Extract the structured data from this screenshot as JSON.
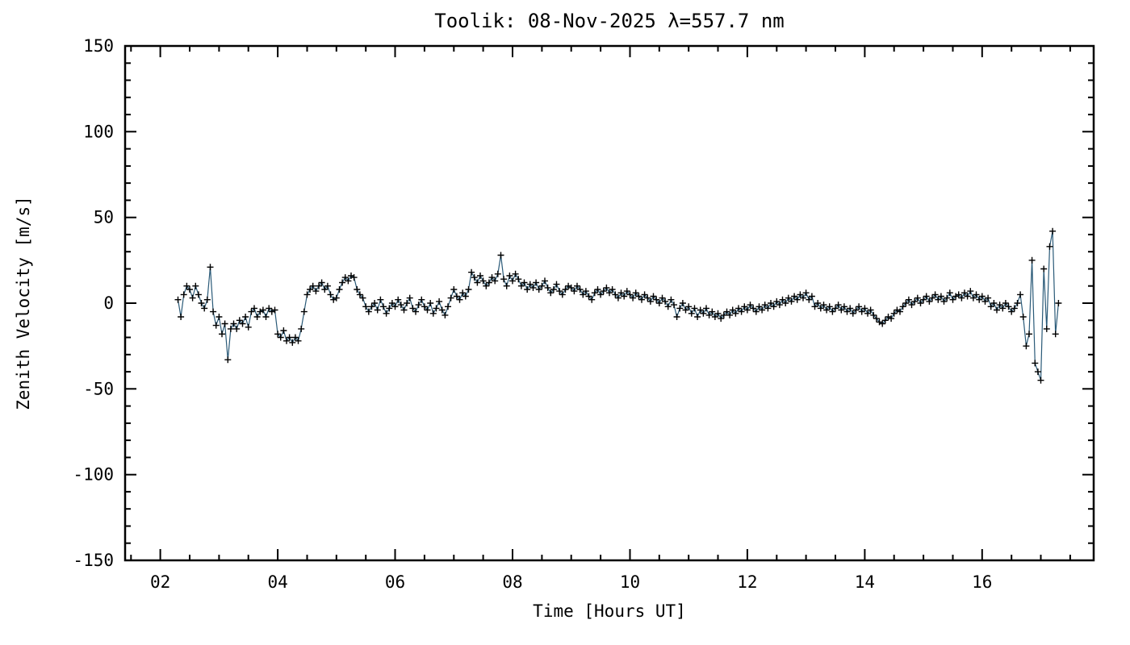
{
  "page": {
    "background": "#ffffff"
  },
  "chart_data": {
    "type": "line",
    "title": "Toolik: 08-Nov-2025 λ=557.7 nm",
    "xlabel": "Time [Hours UT]",
    "ylabel": "Zenith Velocity [m/s]",
    "xlim": [
      1.4,
      17.9
    ],
    "ylim": [
      -150,
      150
    ],
    "x_major_ticks": [
      2,
      4,
      6,
      8,
      10,
      12,
      14,
      16
    ],
    "x_tick_labels": [
      "02",
      "04",
      "06",
      "08",
      "10",
      "12",
      "14",
      "16"
    ],
    "x_minor_interval": 0.5,
    "y_major_ticks": [
      -150,
      -100,
      -50,
      0,
      50,
      100,
      150
    ],
    "y_tick_labels": [
      "-150",
      "-100",
      "-50",
      "0",
      "50",
      "100",
      "150"
    ],
    "y_minor_interval": 10,
    "grid": false,
    "legend": "none",
    "line_color": "#2a5a78",
    "marker": "plus",
    "marker_color": "#000000",
    "axis_color": "#000000",
    "points": [
      [
        2.3,
        2
      ],
      [
        2.35,
        -8
      ],
      [
        2.4,
        5
      ],
      [
        2.45,
        10
      ],
      [
        2.5,
        8
      ],
      [
        2.55,
        3
      ],
      [
        2.6,
        10
      ],
      [
        2.65,
        5
      ],
      [
        2.7,
        0
      ],
      [
        2.75,
        -3
      ],
      [
        2.8,
        2
      ],
      [
        2.85,
        21
      ],
      [
        2.9,
        -5
      ],
      [
        2.95,
        -13
      ],
      [
        3.0,
        -8
      ],
      [
        3.05,
        -18
      ],
      [
        3.1,
        -12
      ],
      [
        3.15,
        -33
      ],
      [
        3.2,
        -15
      ],
      [
        3.25,
        -12
      ],
      [
        3.3,
        -15
      ],
      [
        3.35,
        -10
      ],
      [
        3.4,
        -12
      ],
      [
        3.45,
        -8
      ],
      [
        3.5,
        -14
      ],
      [
        3.55,
        -5
      ],
      [
        3.6,
        -3
      ],
      [
        3.65,
        -8
      ],
      [
        3.7,
        -5
      ],
      [
        3.75,
        -4
      ],
      [
        3.8,
        -8
      ],
      [
        3.85,
        -3
      ],
      [
        3.9,
        -5
      ],
      [
        3.95,
        -4
      ],
      [
        4.0,
        -18
      ],
      [
        4.05,
        -20
      ],
      [
        4.1,
        -16
      ],
      [
        4.15,
        -22
      ],
      [
        4.2,
        -20
      ],
      [
        4.25,
        -23
      ],
      [
        4.3,
        -20
      ],
      [
        4.35,
        -22
      ],
      [
        4.4,
        -15
      ],
      [
        4.45,
        -5
      ],
      [
        4.5,
        5
      ],
      [
        4.55,
        8
      ],
      [
        4.6,
        10
      ],
      [
        4.65,
        7
      ],
      [
        4.7,
        10
      ],
      [
        4.75,
        12
      ],
      [
        4.8,
        8
      ],
      [
        4.85,
        10
      ],
      [
        4.9,
        5
      ],
      [
        4.95,
        2
      ],
      [
        5.0,
        3
      ],
      [
        5.05,
        8
      ],
      [
        5.1,
        12
      ],
      [
        5.15,
        15
      ],
      [
        5.2,
        13
      ],
      [
        5.25,
        16
      ],
      [
        5.3,
        15
      ],
      [
        5.35,
        8
      ],
      [
        5.4,
        5
      ],
      [
        5.45,
        3
      ],
      [
        5.5,
        -2
      ],
      [
        5.55,
        -5
      ],
      [
        5.6,
        -2
      ],
      [
        5.65,
        0
      ],
      [
        5.7,
        -4
      ],
      [
        5.75,
        2
      ],
      [
        5.8,
        -2
      ],
      [
        5.85,
        -6
      ],
      [
        5.9,
        -3
      ],
      [
        5.95,
        0
      ],
      [
        6.0,
        -2
      ],
      [
        6.05,
        2
      ],
      [
        6.1,
        -1
      ],
      [
        6.15,
        -4
      ],
      [
        6.2,
        0
      ],
      [
        6.25,
        3
      ],
      [
        6.3,
        -3
      ],
      [
        6.35,
        -5
      ],
      [
        6.4,
        -1
      ],
      [
        6.45,
        2
      ],
      [
        6.5,
        -2
      ],
      [
        6.55,
        -4
      ],
      [
        6.6,
        0
      ],
      [
        6.65,
        -6
      ],
      [
        6.7,
        -3
      ],
      [
        6.75,
        1
      ],
      [
        6.8,
        -4
      ],
      [
        6.85,
        -7
      ],
      [
        6.9,
        -2
      ],
      [
        6.95,
        3
      ],
      [
        7.0,
        8
      ],
      [
        7.05,
        4
      ],
      [
        7.1,
        2
      ],
      [
        7.15,
        6
      ],
      [
        7.2,
        4
      ],
      [
        7.25,
        8
      ],
      [
        7.3,
        18
      ],
      [
        7.35,
        15
      ],
      [
        7.4,
        12
      ],
      [
        7.45,
        16
      ],
      [
        7.5,
        13
      ],
      [
        7.55,
        10
      ],
      [
        7.6,
        12
      ],
      [
        7.65,
        15
      ],
      [
        7.7,
        13
      ],
      [
        7.75,
        17
      ],
      [
        7.8,
        28
      ],
      [
        7.85,
        14
      ],
      [
        7.9,
        10
      ],
      [
        7.95,
        16
      ],
      [
        8.0,
        13
      ],
      [
        8.05,
        17
      ],
      [
        8.1,
        14
      ],
      [
        8.15,
        10
      ],
      [
        8.2,
        12
      ],
      [
        8.25,
        8
      ],
      [
        8.3,
        11
      ],
      [
        8.35,
        9
      ],
      [
        8.4,
        12
      ],
      [
        8.45,
        8
      ],
      [
        8.5,
        10
      ],
      [
        8.55,
        13
      ],
      [
        8.6,
        9
      ],
      [
        8.65,
        6
      ],
      [
        8.7,
        8
      ],
      [
        8.75,
        11
      ],
      [
        8.8,
        7
      ],
      [
        8.85,
        5
      ],
      [
        8.9,
        8
      ],
      [
        8.95,
        10
      ],
      [
        9.0,
        9
      ],
      [
        9.05,
        7
      ],
      [
        9.1,
        10
      ],
      [
        9.15,
        8
      ],
      [
        9.2,
        5
      ],
      [
        9.25,
        7
      ],
      [
        9.3,
        4
      ],
      [
        9.35,
        2
      ],
      [
        9.4,
        6
      ],
      [
        9.45,
        8
      ],
      [
        9.5,
        5
      ],
      [
        9.55,
        7
      ],
      [
        9.6,
        9
      ],
      [
        9.65,
        6
      ],
      [
        9.7,
        8
      ],
      [
        9.75,
        5
      ],
      [
        9.8,
        3
      ],
      [
        9.85,
        6
      ],
      [
        9.9,
        4
      ],
      [
        9.95,
        7
      ],
      [
        10.0,
        5
      ],
      [
        10.05,
        3
      ],
      [
        10.1,
        6
      ],
      [
        10.15,
        4
      ],
      [
        10.2,
        2
      ],
      [
        10.25,
        5
      ],
      [
        10.3,
        3
      ],
      [
        10.35,
        1
      ],
      [
        10.4,
        4
      ],
      [
        10.45,
        2
      ],
      [
        10.5,
        0
      ],
      [
        10.55,
        3
      ],
      [
        10.6,
        1
      ],
      [
        10.65,
        -2
      ],
      [
        10.7,
        2
      ],
      [
        10.75,
        -1
      ],
      [
        10.8,
        -8
      ],
      [
        10.85,
        -3
      ],
      [
        10.9,
        0
      ],
      [
        10.95,
        -4
      ],
      [
        11.0,
        -2
      ],
      [
        11.05,
        -6
      ],
      [
        11.1,
        -3
      ],
      [
        11.15,
        -8
      ],
      [
        11.2,
        -4
      ],
      [
        11.25,
        -6
      ],
      [
        11.3,
        -3
      ],
      [
        11.35,
        -7
      ],
      [
        11.4,
        -5
      ],
      [
        11.45,
        -8
      ],
      [
        11.5,
        -6
      ],
      [
        11.55,
        -9
      ],
      [
        11.6,
        -7
      ],
      [
        11.65,
        -5
      ],
      [
        11.7,
        -7
      ],
      [
        11.75,
        -4
      ],
      [
        11.8,
        -6
      ],
      [
        11.85,
        -3
      ],
      [
        11.9,
        -5
      ],
      [
        11.95,
        -2
      ],
      [
        12.0,
        -4
      ],
      [
        12.05,
        -1
      ],
      [
        12.1,
        -3
      ],
      [
        12.15,
        -5
      ],
      [
        12.2,
        -2
      ],
      [
        12.25,
        -4
      ],
      [
        12.3,
        -1
      ],
      [
        12.35,
        -3
      ],
      [
        12.4,
        0
      ],
      [
        12.45,
        -2
      ],
      [
        12.5,
        1
      ],
      [
        12.55,
        -1
      ],
      [
        12.6,
        2
      ],
      [
        12.65,
        0
      ],
      [
        12.7,
        3
      ],
      [
        12.75,
        1
      ],
      [
        12.8,
        4
      ],
      [
        12.85,
        2
      ],
      [
        12.9,
        5
      ],
      [
        12.95,
        3
      ],
      [
        13.0,
        6
      ],
      [
        13.05,
        2
      ],
      [
        13.1,
        4
      ],
      [
        13.15,
        -2
      ],
      [
        13.2,
        0
      ],
      [
        13.25,
        -3
      ],
      [
        13.3,
        -1
      ],
      [
        13.35,
        -4
      ],
      [
        13.4,
        -2
      ],
      [
        13.45,
        -5
      ],
      [
        13.5,
        -3
      ],
      [
        13.55,
        -1
      ],
      [
        13.6,
        -4
      ],
      [
        13.65,
        -2
      ],
      [
        13.7,
        -5
      ],
      [
        13.75,
        -3
      ],
      [
        13.8,
        -6
      ],
      [
        13.85,
        -4
      ],
      [
        13.9,
        -2
      ],
      [
        13.95,
        -5
      ],
      [
        14.0,
        -3
      ],
      [
        14.05,
        -6
      ],
      [
        14.1,
        -4
      ],
      [
        14.15,
        -7
      ],
      [
        14.2,
        -9
      ],
      [
        14.25,
        -11
      ],
      [
        14.3,
        -12
      ],
      [
        14.35,
        -10
      ],
      [
        14.4,
        -8
      ],
      [
        14.45,
        -9
      ],
      [
        14.5,
        -6
      ],
      [
        14.55,
        -4
      ],
      [
        14.6,
        -5
      ],
      [
        14.65,
        -2
      ],
      [
        14.7,
        0
      ],
      [
        14.75,
        2
      ],
      [
        14.8,
        -1
      ],
      [
        14.85,
        1
      ],
      [
        14.9,
        3
      ],
      [
        14.95,
        0
      ],
      [
        15.0,
        2
      ],
      [
        15.05,
        4
      ],
      [
        15.1,
        1
      ],
      [
        15.15,
        3
      ],
      [
        15.2,
        5
      ],
      [
        15.25,
        2
      ],
      [
        15.3,
        4
      ],
      [
        15.35,
        1
      ],
      [
        15.4,
        3
      ],
      [
        15.45,
        6
      ],
      [
        15.5,
        2
      ],
      [
        15.55,
        4
      ],
      [
        15.6,
        5
      ],
      [
        15.65,
        3
      ],
      [
        15.7,
        6
      ],
      [
        15.75,
        4
      ],
      [
        15.8,
        7
      ],
      [
        15.85,
        3
      ],
      [
        15.9,
        5
      ],
      [
        15.95,
        2
      ],
      [
        16.0,
        4
      ],
      [
        16.05,
        1
      ],
      [
        16.1,
        3
      ],
      [
        16.15,
        -2
      ],
      [
        16.2,
        0
      ],
      [
        16.25,
        -4
      ],
      [
        16.3,
        -1
      ],
      [
        16.35,
        -3
      ],
      [
        16.4,
        0
      ],
      [
        16.45,
        -2
      ],
      [
        16.5,
        -5
      ],
      [
        16.55,
        -3
      ],
      [
        16.6,
        0
      ],
      [
        16.65,
        5
      ],
      [
        16.7,
        -8
      ],
      [
        16.75,
        -25
      ],
      [
        16.8,
        -18
      ],
      [
        16.85,
        25
      ],
      [
        16.9,
        -35
      ],
      [
        16.95,
        -40
      ],
      [
        17.0,
        -45
      ],
      [
        17.05,
        20
      ],
      [
        17.1,
        -15
      ],
      [
        17.15,
        33
      ],
      [
        17.2,
        42
      ],
      [
        17.25,
        -18
      ],
      [
        17.3,
        0
      ]
    ]
  }
}
